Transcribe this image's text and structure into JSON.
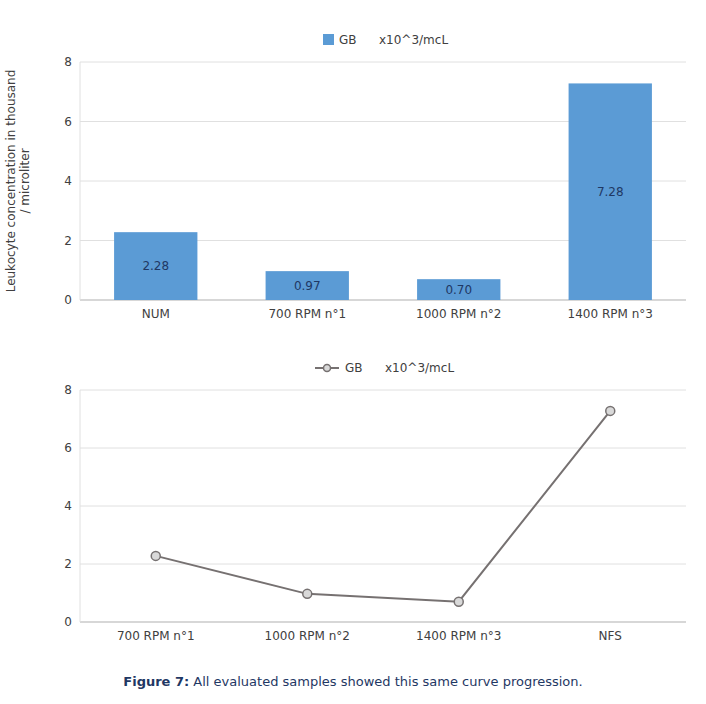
{
  "chart_data": [
    {
      "type": "bar",
      "categories": [
        "NUM",
        "700 RPM  n°1",
        "1000 RPM  n°2",
        "1400 RPM  n°3"
      ],
      "series": [
        {
          "name": "GB",
          "color": "#5b9bd5",
          "values": [
            2.28,
            0.97,
            0.7,
            7.28
          ],
          "value_labels": [
            "2.28",
            "0.97",
            "0.70",
            "7.28"
          ]
        }
      ],
      "y_label": "Leukocyte concentration in thousand\n/ microliter",
      "ylim": [
        0,
        8
      ],
      "yticks": [
        0,
        2,
        4,
        6,
        8
      ],
      "grid": true,
      "legend": "top",
      "data_labels": true,
      "annotations": [
        "x10^3/mcL"
      ]
    },
    {
      "type": "line",
      "categories": [
        "700 RPM  n°1",
        "1000 RPM  n°2",
        "1400 RPM  n°3",
        "NFS"
      ],
      "series": [
        {
          "name": "GB",
          "color": "#767171",
          "marker": "circle",
          "values": [
            2.28,
            0.97,
            0.7,
            7.28
          ]
        }
      ],
      "ylim": [
        0,
        8
      ],
      "yticks": [
        0,
        2,
        4,
        6,
        8
      ],
      "grid": true,
      "legend": "top",
      "annotations": [
        "x10^3/mcL",
        "Figure 7:",
        " All evaluated samples showed this same curve progression."
      ]
    }
  ]
}
